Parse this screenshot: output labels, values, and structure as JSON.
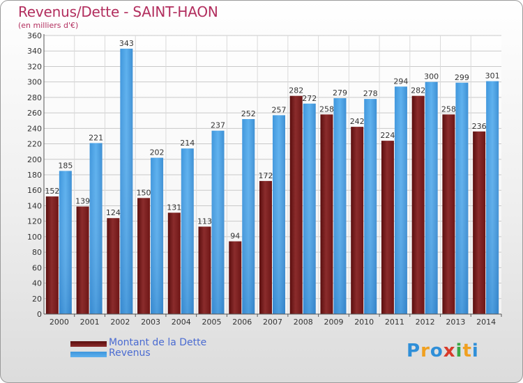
{
  "header": {
    "title": "Revenus/Dette - SAINT-HAON",
    "subtitle": "(en milliers d'€)"
  },
  "chart_data": {
    "type": "bar",
    "categories": [
      "2000",
      "2001",
      "2002",
      "2003",
      "2004",
      "2005",
      "2006",
      "2007",
      "2008",
      "2009",
      "2010",
      "2011",
      "2012",
      "2013",
      "2014"
    ],
    "series": [
      {
        "name": "Montant de la Dette",
        "color": "#8b2c2c",
        "values": [
          152,
          139,
          124,
          150,
          131,
          113,
          94,
          172,
          282,
          258,
          242,
          224,
          282,
          258,
          236
        ]
      },
      {
        "name": "Revenus",
        "color": "#4da3e6",
        "values": [
          185,
          221,
          343,
          202,
          214,
          237,
          252,
          257,
          272,
          279,
          278,
          294,
          300,
          299,
          301
        ]
      }
    ],
    "ylim": [
      0,
      360
    ],
    "yticks": [
      0,
      20,
      40,
      60,
      80,
      100,
      120,
      140,
      160,
      180,
      200,
      220,
      240,
      260,
      280,
      300,
      320,
      340,
      360
    ],
    "grid": true,
    "legend_position": "bottom-left"
  },
  "logo": {
    "text": "Proxiti",
    "letters": [
      {
        "ch": "P",
        "color": "#2f8fd8"
      },
      {
        "ch": "r",
        "color": "#f0a020"
      },
      {
        "ch": "o",
        "color": "#2f8fd8"
      },
      {
        "ch": "x",
        "color": "#d83a2a"
      },
      {
        "ch": "i",
        "color": "#3aa845"
      },
      {
        "ch": "t",
        "color": "#f0a020"
      },
      {
        "ch": "i",
        "color": "#2f8fd8"
      }
    ]
  }
}
